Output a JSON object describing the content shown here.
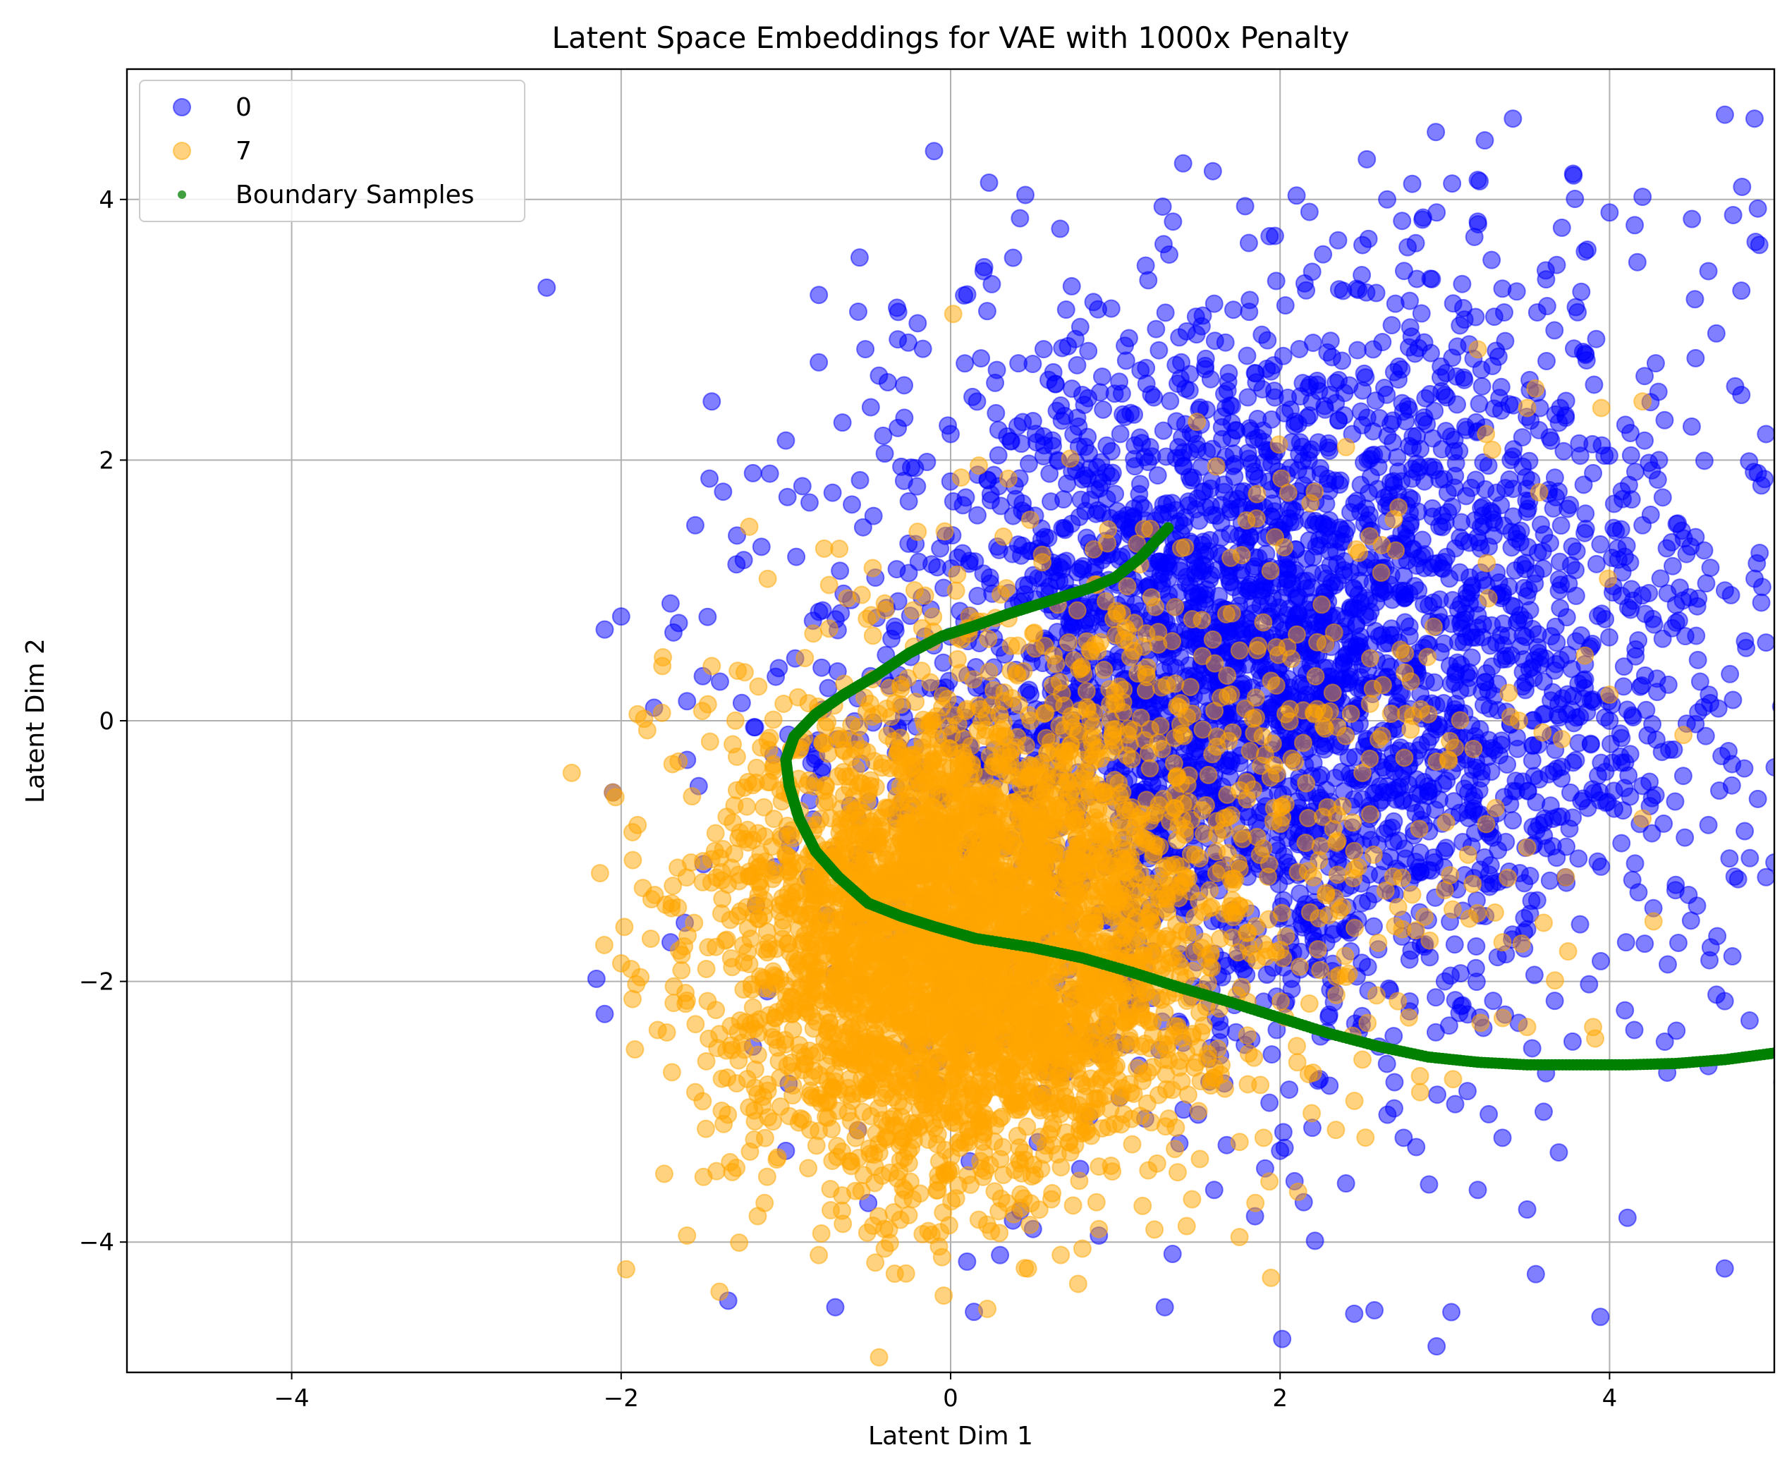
{
  "chart_data": {
    "type": "scatter",
    "title": "Latent Space Embeddings for VAE with 1000x Penalty",
    "xlabel": "Latent Dim 1",
    "ylabel": "Latent Dim 2",
    "xlim": [
      -5,
      5
    ],
    "ylim": [
      -5,
      5
    ],
    "xticks": [
      -4,
      -2,
      0,
      2,
      4
    ],
    "yticks": [
      -4,
      -2,
      0,
      2,
      4
    ],
    "grid": true,
    "legend_position": "top-left",
    "series": [
      {
        "name": "0",
        "marker": "circle",
        "color": "#0000ff",
        "alpha": 0.5,
        "distribution": {
          "mean_x": 1.6,
          "mean_y": 0.35,
          "sd_x": 1.05,
          "sd_y": 1.35,
          "tail_fraction": 0.25,
          "tail_center": [
            3.2,
            0.6
          ],
          "tail_sd": [
            1.1,
            1.6
          ]
        },
        "points": [
          [
            -2.0,
            0.8
          ],
          [
            -2.1,
            0.7
          ],
          [
            -2.15,
            -1.98
          ],
          [
            -2.1,
            -2.25
          ],
          [
            -1.35,
            -4.45
          ],
          [
            -0.7,
            -4.5
          ],
          [
            -1.45,
            2.45
          ],
          [
            -0.8,
            2.75
          ],
          [
            -0.2,
            3.05
          ],
          [
            0.2,
            3.45
          ],
          [
            0.25,
            3.35
          ],
          [
            1.35,
            3.83
          ],
          [
            1.2,
            3.38
          ],
          [
            1.6,
            3.2
          ],
          [
            2.1,
            4.03
          ],
          [
            3.2,
            4.15
          ],
          [
            2.95,
            3.9
          ],
          [
            2.65,
            4.0
          ],
          [
            4.7,
            4.65
          ],
          [
            4.88,
            4.62
          ],
          [
            4.75,
            3.88
          ],
          [
            4.9,
            3.93
          ],
          [
            3.85,
            3.6
          ],
          [
            4.0,
            3.9
          ],
          [
            4.5,
            3.85
          ],
          [
            4.2,
            4.02
          ],
          [
            3.2,
            3.83
          ],
          [
            2.5,
            3.65
          ],
          [
            4.6,
            3.45
          ],
          [
            4.8,
            3.3
          ],
          [
            -2.05,
            -0.55
          ],
          [
            -1.8,
            0.1
          ],
          [
            -1.6,
            0.15
          ],
          [
            -1.55,
            1.5
          ],
          [
            -1.2,
            1.9
          ],
          [
            -1.0,
            2.15
          ],
          [
            2.95,
            -4.8
          ],
          [
            2.45,
            -4.55
          ],
          [
            1.3,
            -4.5
          ],
          [
            0.1,
            -4.15
          ],
          [
            0.3,
            -4.1
          ],
          [
            3.5,
            -3.75
          ],
          [
            3.2,
            -3.6
          ],
          [
            2.4,
            -3.55
          ],
          [
            3.35,
            -3.2
          ],
          [
            2.75,
            -3.2
          ],
          [
            3.6,
            -3.0
          ],
          [
            4.6,
            -2.65
          ],
          [
            4.35,
            -2.7
          ],
          [
            4.85,
            -2.3
          ],
          [
            4.95,
            -1.2
          ],
          [
            4.9,
            -0.6
          ],
          [
            4.95,
            0.6
          ],
          [
            4.9,
            1.9
          ],
          [
            4.95,
            2.2
          ],
          [
            4.8,
            2.5
          ],
          [
            3.9,
            1.9
          ],
          [
            4.2,
            1.5
          ],
          [
            4.7,
            1.0
          ],
          [
            4.55,
            0.3
          ],
          [
            3.0,
            2.5
          ],
          [
            3.3,
            3.1
          ],
          [
            2.7,
            3.2
          ],
          [
            2.2,
            2.9
          ],
          [
            1.8,
            2.8
          ],
          [
            1.4,
            2.75
          ],
          [
            0.8,
            2.5
          ],
          [
            0.5,
            2.3
          ],
          [
            0.0,
            2.2
          ],
          [
            -0.4,
            2.05
          ],
          [
            -0.9,
            1.8
          ],
          [
            -1.3,
            1.2
          ],
          [
            -1.7,
            0.9
          ],
          [
            -1.65,
            0.75
          ],
          [
            -1.4,
            0.3
          ],
          [
            -1.6,
            -0.3
          ],
          [
            -1.5,
            -1.1
          ],
          [
            -1.7,
            -1.7
          ],
          [
            -1.2,
            -2.5
          ],
          [
            -1.0,
            -3.3
          ],
          [
            -0.5,
            -3.7
          ],
          [
            0.5,
            -3.9
          ],
          [
            0.9,
            -3.95
          ],
          [
            1.6,
            -3.6
          ],
          [
            2.0,
            -3.3
          ],
          [
            2.3,
            -2.8
          ],
          [
            2.6,
            -2.5
          ],
          [
            3.0,
            -2.0
          ],
          [
            3.5,
            -1.6
          ],
          [
            4.1,
            -1.7
          ],
          [
            4.4,
            -1.3
          ],
          [
            4.6,
            -0.8
          ],
          [
            4.2,
            -0.5
          ],
          [
            4.0,
            0.0
          ],
          [
            3.6,
            0.3
          ],
          [
            3.2,
            0.9
          ],
          [
            3.8,
            1.3
          ],
          [
            4.3,
            2.0
          ],
          [
            3.7,
            2.4
          ],
          [
            3.4,
            2.0
          ],
          [
            2.8,
            1.7
          ],
          [
            2.3,
            1.3
          ]
        ]
      },
      {
        "name": "7",
        "marker": "circle",
        "color": "#ffa500",
        "alpha": 0.5,
        "distribution": {
          "mean_x": 0.05,
          "mean_y": -1.7,
          "sd_x": 0.7,
          "sd_y": 0.9,
          "tail_fraction": 0.15,
          "tail_center": [
            1.4,
            -0.6
          ],
          "tail_sd": [
            1.1,
            1.1
          ]
        },
        "points": [
          [
            -2.3,
            -0.4
          ],
          [
            -1.9,
            0.05
          ],
          [
            -1.75,
            0.42
          ],
          [
            -1.45,
            0.42
          ],
          [
            -2.05,
            -0.55
          ],
          [
            -1.9,
            -0.8
          ],
          [
            -1.6,
            -3.95
          ],
          [
            -1.5,
            -3.5
          ],
          [
            -0.8,
            -4.1
          ],
          [
            -0.4,
            -4.05
          ],
          [
            0.45,
            -4.2
          ],
          [
            0.8,
            -4.05
          ],
          [
            0.9,
            -3.9
          ],
          [
            1.2,
            -3.45
          ],
          [
            1.85,
            -3.7
          ],
          [
            1.9,
            -3.2
          ],
          [
            2.2,
            -2.7
          ],
          [
            2.5,
            -2.6
          ],
          [
            2.85,
            -2.85
          ],
          [
            3.05,
            -2.75
          ],
          [
            3.5,
            -2.35
          ],
          [
            3.9,
            -2.35
          ],
          [
            3.6,
            -1.55
          ],
          [
            3.35,
            -1.7
          ],
          [
            3.25,
            2.2
          ],
          [
            3.2,
            2.85
          ],
          [
            3.55,
            2.55
          ],
          [
            3.95,
            2.4
          ],
          [
            4.2,
            2.45
          ],
          [
            3.5,
            2.4
          ],
          [
            2.4,
            2.1
          ],
          [
            2.05,
            1.75
          ],
          [
            1.7,
            1.25
          ],
          [
            1.15,
            1.2
          ],
          [
            -0.2,
            1.45
          ],
          [
            -0.4,
            0.9
          ],
          [
            3.85,
            0.5
          ],
          [
            4.0,
            0.2
          ],
          [
            3.45,
            0.0
          ],
          [
            2.9,
            0.05
          ],
          [
            2.5,
            -0.4
          ],
          [
            4.2,
            -0.75
          ],
          [
            2.2,
            -1.2
          ],
          [
            2.45,
            -1.0
          ],
          [
            3.0,
            -1.3
          ],
          [
            -1.05,
            -3.35
          ],
          [
            -1.2,
            -2.2
          ],
          [
            -1.55,
            -2.85
          ]
        ]
      },
      {
        "name": "Boundary Samples",
        "marker": "circle",
        "color": "#008000",
        "points": [
          [
            1.32,
            1.48
          ],
          [
            1.15,
            1.25
          ],
          [
            1.0,
            1.1
          ],
          [
            0.85,
            1.02
          ],
          [
            0.6,
            0.92
          ],
          [
            0.35,
            0.82
          ],
          [
            0.15,
            0.73
          ],
          [
            -0.05,
            0.65
          ],
          [
            -0.25,
            0.52
          ],
          [
            -0.45,
            0.35
          ],
          [
            -0.65,
            0.2
          ],
          [
            -0.82,
            0.05
          ],
          [
            -0.95,
            -0.12
          ],
          [
            -1.0,
            -0.3
          ],
          [
            -0.98,
            -0.5
          ],
          [
            -0.92,
            -0.75
          ],
          [
            -0.82,
            -1.0
          ],
          [
            -0.68,
            -1.2
          ],
          [
            -0.5,
            -1.4
          ],
          [
            -0.3,
            -1.5
          ],
          [
            -0.1,
            -1.58
          ],
          [
            0.15,
            -1.67
          ],
          [
            0.5,
            -1.74
          ],
          [
            0.8,
            -1.82
          ],
          [
            1.1,
            -1.93
          ],
          [
            1.4,
            -2.05
          ],
          [
            1.7,
            -2.16
          ],
          [
            2.0,
            -2.28
          ],
          [
            2.3,
            -2.4
          ],
          [
            2.6,
            -2.5
          ],
          [
            2.9,
            -2.58
          ],
          [
            3.2,
            -2.62
          ],
          [
            3.5,
            -2.64
          ],
          [
            3.8,
            -2.64
          ],
          [
            4.1,
            -2.64
          ],
          [
            4.4,
            -2.63
          ],
          [
            4.7,
            -2.6
          ],
          [
            5.0,
            -2.55
          ]
        ]
      }
    ]
  }
}
